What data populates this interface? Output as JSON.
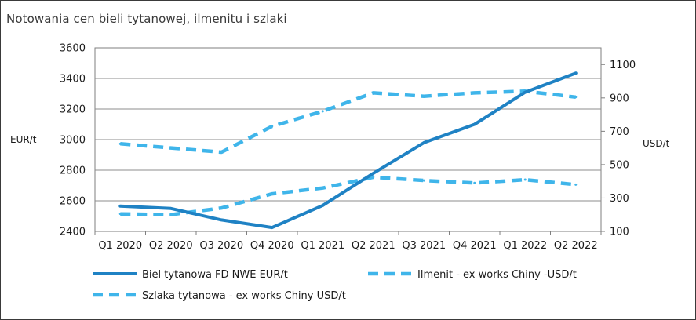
{
  "chart_data": {
    "type": "line",
    "title": "Notowania cen bieli tytanowej, ilmenitu i szlaki",
    "categories": [
      "Q1 2020",
      "Q2 2020",
      "Q3 2020",
      "Q4 2020",
      "Q1 2021",
      "Q2 2021",
      "Q3 2021",
      "Q4 2021",
      "Q1 2022",
      "Q2 2022"
    ],
    "ylabel_left": "EUR/t",
    "ylabel_right": "USD/t",
    "ylim_left": [
      2400,
      3600
    ],
    "yticks_left": [
      2400,
      2600,
      2800,
      3000,
      3200,
      3400,
      3600
    ],
    "ylim_right": [
      100,
      1200
    ],
    "yticks_right": [
      100,
      300,
      500,
      700,
      900,
      1100
    ],
    "grid": true,
    "legend_position": "bottom",
    "series": [
      {
        "name": "Biel tytanowa FD NWE EUR/t",
        "axis": "left",
        "style": "solid",
        "color": "#1f82c4",
        "values": [
          2565,
          2550,
          2475,
          2425,
          2570,
          2780,
          2980,
          3100,
          3310,
          3435
        ]
      },
      {
        "name": "Ilmenit - ex works Chiny -USD/t",
        "axis": "right",
        "style": "dashed",
        "color": "#3fb5ea",
        "values": [
          205,
          200,
          240,
          325,
          360,
          425,
          405,
          390,
          410,
          380
        ]
      },
      {
        "name": "Szlaka tytanowa - ex works Chiny USD/t",
        "axis": "right",
        "style": "dashed",
        "color": "#3fb5ea",
        "values": [
          625,
          600,
          575,
          730,
          820,
          930,
          910,
          930,
          940,
          905
        ]
      }
    ]
  }
}
